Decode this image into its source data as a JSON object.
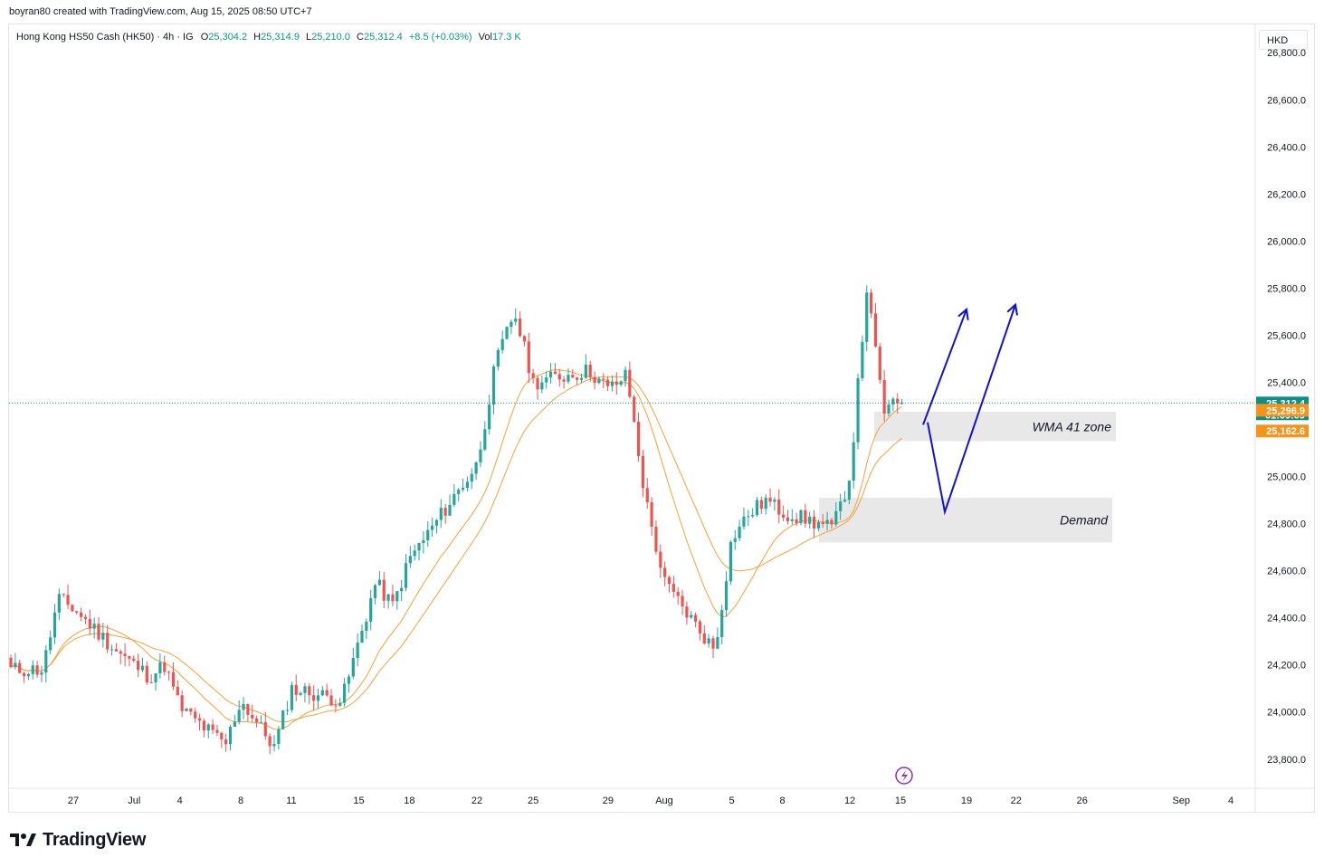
{
  "header": {
    "credit": "boyran80 created with TradingView.com, Aug 15, 2025 08:50 UTC+7"
  },
  "legend": {
    "symbol": "Hong Kong HS50 Cash (HK50) · 4h · IG",
    "open_label": "O",
    "open": "25,304.2",
    "high_label": "H",
    "high": "25,314.9",
    "low_label": "L",
    "low": "25,210.0",
    "close_label": "C",
    "close": "25,312.4",
    "change": "+8.5 (+0.03%)",
    "vol_label": "Vol",
    "vol": "17.3 K"
  },
  "currency": "HKD",
  "price_tags": {
    "last_price": "25,312.4",
    "countdown": "01:09:09",
    "wma_fast": "25,296.9",
    "wma_slow": "25,162.6"
  },
  "zone_labels": {
    "wma": "WMA 41 zone",
    "demand": "Demand"
  },
  "branding": {
    "name": "TradingView"
  },
  "colors": {
    "up": "#26a69a",
    "down": "#ef5350",
    "wma": "#f7a13a",
    "arrow": "#1010d8",
    "zone": "#e8e8e8",
    "tag_dark": "#0d8f84",
    "tag_orange": "#f7931a",
    "lightning": "#9c27b0"
  },
  "chart_data": {
    "type": "candlestick",
    "interval": "4h",
    "y_axis": {
      "ticks": [
        "26,800.0",
        "26,600.0",
        "26,400.0",
        "26,200.0",
        "26,000.0",
        "25,800.0",
        "25,600.0",
        "25,400.0",
        "25,200.0",
        "25,000.0",
        "24,800.0",
        "24,600.0",
        "24,400.0",
        "24,200.0",
        "24,000.0",
        "23,800.0"
      ],
      "range": [
        23680,
        26920
      ]
    },
    "x_axis": {
      "ticks": [
        "27",
        "Jul",
        "4",
        "8",
        "11",
        "15",
        "18",
        "22",
        "25",
        "29",
        "Aug",
        "5",
        "8",
        "12",
        "15",
        "19",
        "22",
        "26",
        "Sep",
        "4"
      ]
    },
    "close_path": [
      [
        "Jun 25",
        24180
      ],
      [
        "Jun 26",
        24480
      ],
      [
        "Jun 27",
        24440
      ],
      [
        "Jun 30",
        24250
      ],
      [
        "Jul 2",
        24150
      ],
      [
        "Jul 3",
        24200
      ],
      [
        "Jul 4",
        24020
      ],
      [
        "Jul 7",
        23860
      ],
      [
        "Jul 8",
        24050
      ],
      [
        "Jul 9",
        23950
      ],
      [
        "Jul 10",
        23850
      ],
      [
        "Jul 11",
        24100
      ],
      [
        "Jul 14",
        24050
      ],
      [
        "Jul 15",
        24300
      ],
      [
        "Jul 16",
        24550
      ],
      [
        "Jul 17",
        24450
      ],
      [
        "Jul 18",
        24650
      ],
      [
        "Jul 21",
        24950
      ],
      [
        "Jul 22",
        25050
      ],
      [
        "Jul 23",
        25480
      ],
      [
        "Jul 24",
        25700
      ],
      [
        "Jul 25",
        25400
      ],
      [
        "Jul 28",
        25450
      ],
      [
        "Jul 29",
        25370
      ],
      [
        "Jul 30",
        25430
      ],
      [
        "Jul 31",
        24900
      ],
      [
        "Aug 1",
        24550
      ],
      [
        "Aug 4",
        24260
      ],
      [
        "Aug 5",
        24740
      ],
      [
        "Aug 6",
        24840
      ],
      [
        "Aug 7",
        24900
      ],
      [
        "Aug 8",
        24850
      ],
      [
        "Aug 11",
        24780
      ],
      [
        "Aug 12",
        25000
      ],
      [
        "Aug 13",
        25800
      ],
      [
        "Aug 14",
        25280
      ],
      [
        "Aug 15",
        25312
      ]
    ],
    "wma_fast_end": 25296.9,
    "wma_slow_end": 25162.6,
    "last_price": 25312.4,
    "zones": [
      {
        "label": "WMA 41 zone",
        "from": 25150,
        "to": 25275
      },
      {
        "label": "Demand",
        "from": 24720,
        "to": 24910
      }
    ],
    "projection": [
      {
        "points": [
          [
            25220,
            "Aug 16"
          ],
          [
            25710,
            "Aug 18"
          ]
        ]
      },
      {
        "points": [
          [
            25230,
            "Aug 16"
          ],
          [
            24850,
            "Aug 18"
          ],
          [
            25730,
            "Aug 21"
          ]
        ]
      }
    ]
  }
}
